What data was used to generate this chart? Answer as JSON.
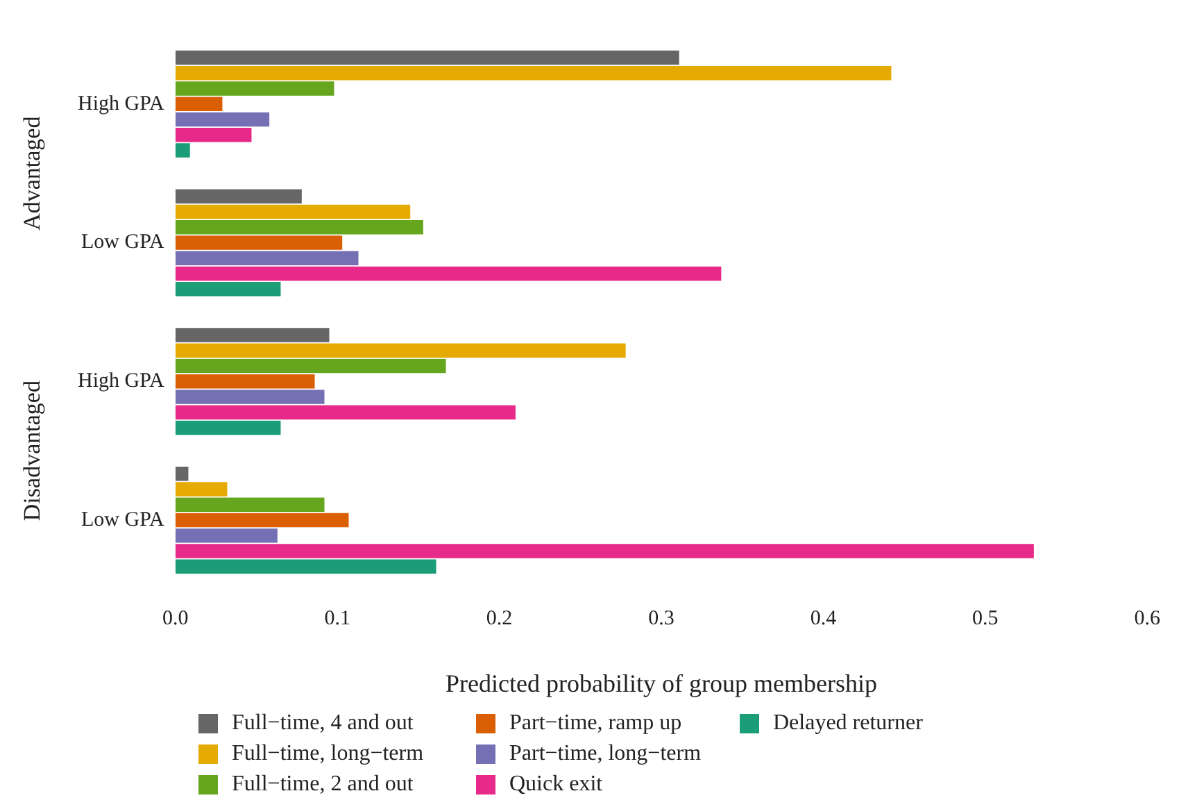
{
  "chart_data": {
    "type": "bar",
    "orientation": "horizontal",
    "xlabel": "Predicted probability of group membership",
    "categories": [
      "High GPA",
      "Low GPA",
      "High GPA",
      "Low GPA"
    ],
    "annotations": [
      "Advantaged",
      "Disadvantaged"
    ],
    "xlim": [
      0,
      0.6
    ],
    "xticks": [
      {
        "value": 0,
        "label": "0.0"
      },
      0.1,
      0.2,
      0.3,
      0.4,
      0.5,
      0.6
    ],
    "grid": false,
    "legend": "bottom",
    "series": [
      {
        "name": "Full−time, 4 and out",
        "color": "#666666",
        "values": [
          0.311,
          0.078,
          0.095,
          0.008
        ]
      },
      {
        "name": "Full−time, long−term",
        "color": "#e6ab02",
        "values": [
          0.442,
          0.145,
          0.278,
          0.032
        ]
      },
      {
        "name": "Full−time, 2 and out",
        "color": "#66a61e",
        "values": [
          0.098,
          0.153,
          0.167,
          0.092
        ]
      },
      {
        "name": "Part−time, ramp up",
        "color": "#d95f02",
        "values": [
          0.029,
          0.103,
          0.086,
          0.107
        ]
      },
      {
        "name": "Part−time, long−term",
        "color": "#7570b3",
        "values": [
          0.058,
          0.113,
          0.092,
          0.063
        ]
      },
      {
        "name": "Quick exit",
        "color": "#e7298a",
        "values": [
          0.047,
          0.337,
          0.21,
          0.53
        ]
      },
      {
        "name": "Delayed returner",
        "color": "#1b9e77",
        "values": [
          0.009,
          0.065,
          0.065,
          0.161
        ]
      }
    ]
  }
}
